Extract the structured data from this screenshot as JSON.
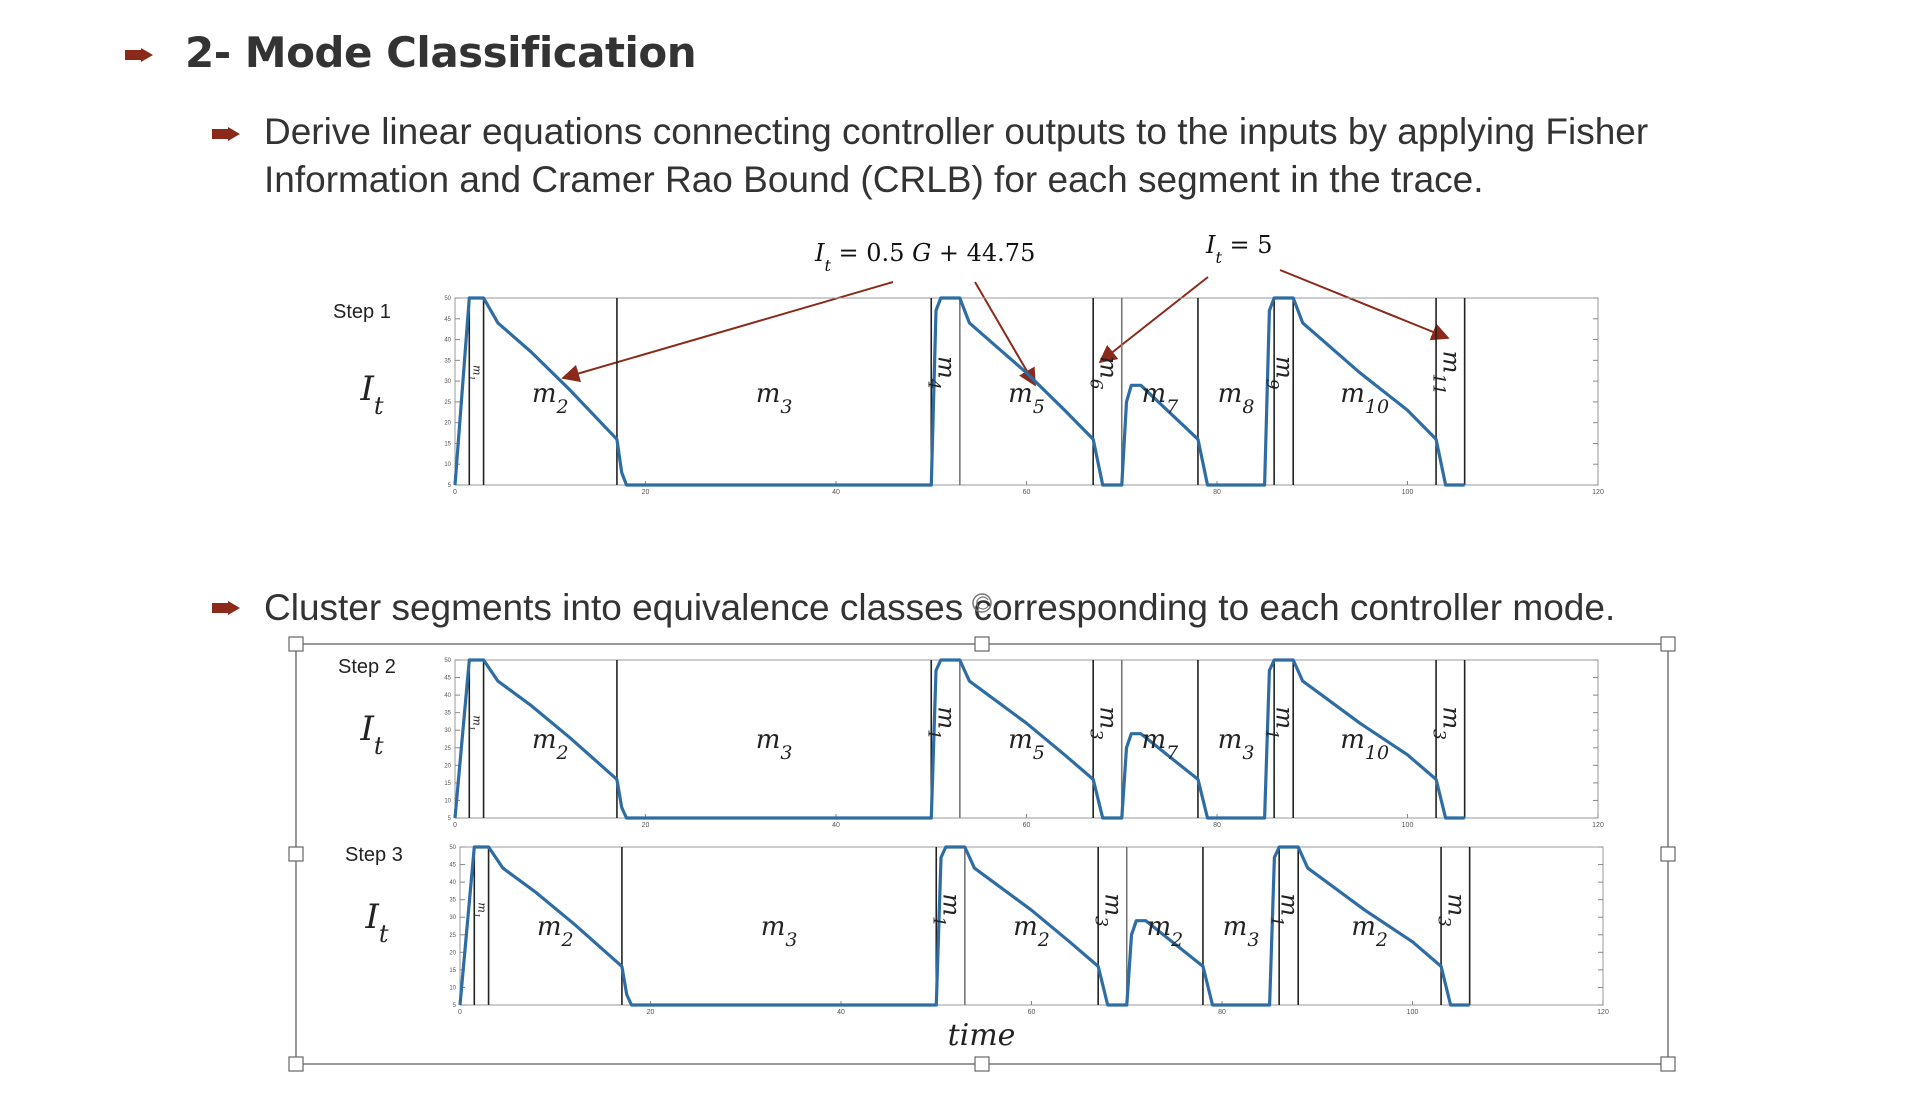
{
  "slide": {
    "heading": "2- Mode Classification",
    "bullet1": "Derive linear equations connecting controller outputs to the inputs by applying Fisher Information and Cramer Rao Bound (CRLB) for each segment in the trace.",
    "bullet2": "Cluster segments into equivalence classes corresponding to each controller mode.",
    "accent_color": "#8B2A1A",
    "line_color": "#2E6DA4"
  },
  "annotations": {
    "eq1": "I_t = 0.5 G + 44.75",
    "eq2": "I_t = 5"
  },
  "steps": [
    {
      "label": "Step 1",
      "ylabel": "I_t",
      "modes": [
        "m1",
        "m2",
        "m3",
        "m4",
        "m5",
        "m6",
        "m7",
        "m8",
        "m9",
        "m10",
        "m11"
      ]
    },
    {
      "label": "Step 2",
      "ylabel": "I_t",
      "modes": [
        "m1",
        "m2",
        "m3",
        "m1",
        "m5",
        "m3",
        "m7",
        "m3",
        "m1",
        "m10",
        "m3"
      ]
    },
    {
      "label": "Step 3",
      "ylabel": "I_t",
      "modes": [
        "m1",
        "m2",
        "m3",
        "m1",
        "m2",
        "m3",
        "m2",
        "m3",
        "m1",
        "m2",
        "m3"
      ],
      "xlabel": "time"
    }
  ],
  "chart_data": {
    "type": "line",
    "title": "",
    "xlabel": "time",
    "ylabel": "I_t",
    "xlim": [
      0,
      120
    ],
    "ylim": [
      5,
      50
    ],
    "x_ticks": [
      "0",
      "20",
      "40",
      "60",
      "80",
      "100",
      "120"
    ],
    "y_ticks": [
      "5",
      "10",
      "15",
      "20",
      "25",
      "30",
      "35",
      "40",
      "45",
      "50"
    ],
    "series": [
      {
        "x": [
          0,
          1.5,
          3,
          4.5,
          8,
          12,
          17,
          17.5,
          18,
          50,
          50.5,
          51,
          53,
          54,
          56,
          60,
          64,
          67,
          68,
          70,
          70.5,
          71,
          72,
          78,
          79,
          85,
          85.5,
          86,
          88,
          89,
          91,
          95,
          100,
          103,
          104,
          106
        ],
        "y": [
          5,
          50,
          50,
          44,
          37,
          28,
          16,
          8,
          5,
          5,
          47,
          50,
          50,
          44,
          40,
          32,
          23,
          16,
          5,
          5,
          25,
          29,
          29,
          16,
          5,
          5,
          47,
          50,
          50,
          44,
          40,
          32,
          23,
          16,
          5,
          5
        ]
      }
    ],
    "segment_boundaries": [
      1.5,
      3,
      17,
      50,
      53,
      67,
      70,
      78,
      86,
      88,
      103,
      106
    ]
  }
}
